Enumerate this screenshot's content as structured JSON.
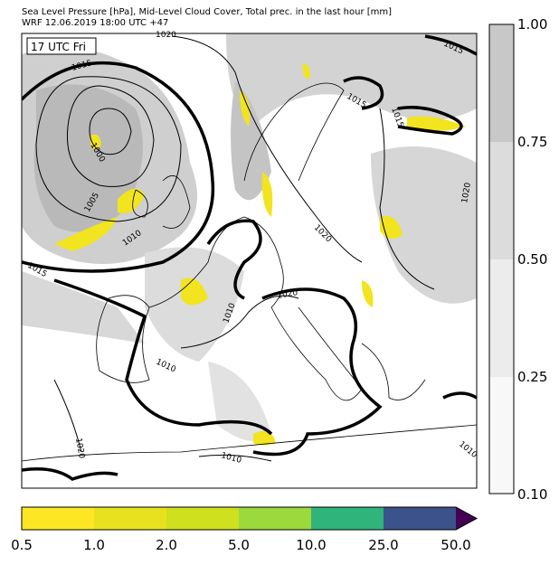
{
  "header": {
    "line1": "Sea Level Pressure [hPa], Mid-Level Cloud Cover, Total prec. in the last hour [mm]",
    "line2": "WRF 12.06.2019 18:00 UTC +47"
  },
  "map": {
    "time_box": "17 UTC Fri",
    "isobar_labels": [
      "1020",
      "1015",
      "1015",
      "1000",
      "1005",
      "1010",
      "1015",
      "1015",
      "1015",
      "1020",
      "1020",
      "1020",
      "1010",
      "1010",
      "1020",
      "1010",
      "1010"
    ]
  },
  "cloud_colorbar": {
    "labels": [
      "1.00",
      "0.75",
      "0.50",
      "0.25",
      "0.10"
    ]
  },
  "precip_colorbar": {
    "labels": [
      "0.5",
      "1.0",
      "2.0",
      "5.0",
      "10.0",
      "25.0",
      "50.0"
    ]
  }
}
